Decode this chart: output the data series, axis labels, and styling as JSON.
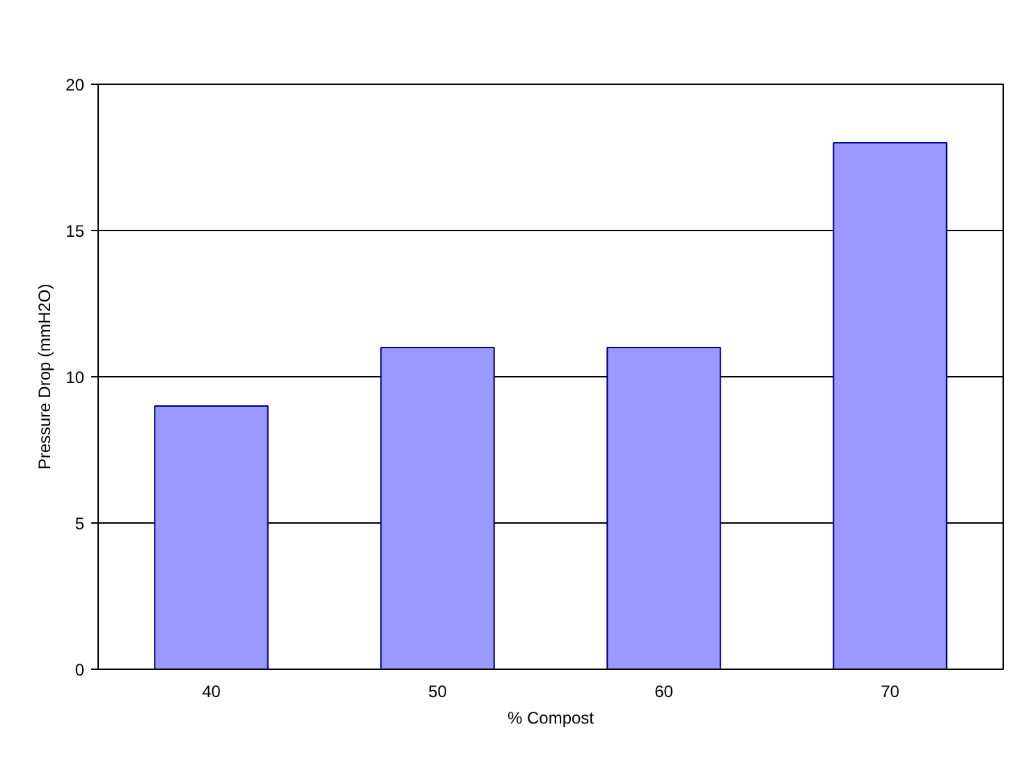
{
  "chart_data": {
    "type": "bar",
    "xlabel": "% Compost",
    "ylabel": "Pressure Drop (mmH2O)",
    "categories": [
      "40",
      "50",
      "60",
      "70"
    ],
    "series": [
      {
        "color": "#9999ff",
        "values": [
          9,
          11,
          11,
          18
        ]
      }
    ],
    "ylim": [
      0,
      20
    ],
    "yticks": [
      0,
      5,
      10,
      15,
      20
    ],
    "grid": "y"
  }
}
